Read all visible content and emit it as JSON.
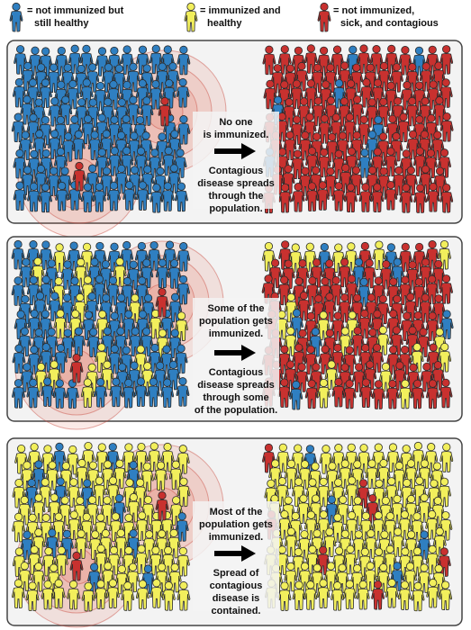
{
  "legend": [
    {
      "lines": [
        "= not immunized but",
        "still healthy"
      ]
    },
    {
      "lines": [
        "= immunized and",
        "healthy"
      ]
    },
    {
      "lines": [
        "= not immunized,",
        "sick, and contagious"
      ]
    }
  ],
  "panels": [
    {
      "caption_top": [
        "No one",
        "is immunized."
      ],
      "caption_bottom": [
        "Contagious",
        "disease spreads",
        "through the",
        "population."
      ]
    },
    {
      "caption_top": [
        "Some of the",
        "population gets",
        "immunized."
      ],
      "caption_bottom": [
        "Contagious",
        "disease spreads",
        "through some",
        "of the population."
      ]
    },
    {
      "caption_top": [
        "Most of the",
        "population gets",
        "immunized."
      ],
      "caption_bottom": [
        "Spread of",
        "contagious",
        "disease is",
        "contained."
      ]
    }
  ]
}
